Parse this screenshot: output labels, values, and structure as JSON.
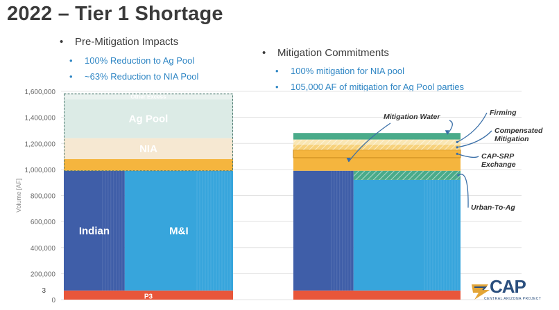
{
  "title": "2022 – Tier 1 Shortage",
  "left_bullets": {
    "heading": "Pre-Mitigation Impacts",
    "items": [
      "100% Reduction to Ag Pool",
      "~63% Reduction to NIA Pool"
    ]
  },
  "right_bullets": {
    "heading": "Mitigation Commitments",
    "items": [
      "100% mitigation for NIA pool",
      "105,000 AF of mitigation for Ag Pool parties"
    ]
  },
  "logo": {
    "text": "CAP",
    "subtext": "CENTRAL ARIZONA PROJECT"
  },
  "colors": {
    "p3": "#e8563a",
    "indian": "#3f5ea8",
    "mi": "#37a5dc",
    "orange": "#f5b53e",
    "nia": "#f6e8d2",
    "ag": "#dcebe6",
    "excess": "#eaf2ef",
    "mitigation_water": "#4aab8a",
    "grid": "#e3e3e3"
  },
  "chart_data": {
    "type": "bar",
    "ylabel": "Volume [AF]",
    "ylim": [
      0,
      1600000
    ],
    "yticks": [
      {
        "v": 0,
        "label": "0"
      },
      {
        "v": 200000,
        "label": "200,000"
      },
      {
        "v": 400000,
        "label": "400,000"
      },
      {
        "v": 600000,
        "label": "600,000"
      },
      {
        "v": 800000,
        "label": "800,000"
      },
      {
        "v": 1000000,
        "label": "1,000,000"
      },
      {
        "v": 1200000,
        "label": "1,200,000"
      },
      {
        "v": 1400000,
        "label": "1,400,000"
      },
      {
        "v": 1600000,
        "label": "1,600,000"
      }
    ],
    "extra_tick": {
      "v": 75000,
      "label": "3"
    },
    "grid": true,
    "bars": [
      {
        "segments": [
          {
            "key": "p3",
            "y0": 0,
            "y1": 70000,
            "label": "P3",
            "color": "#e8563a"
          },
          {
            "key": "indian",
            "y0": 70000,
            "y1": 990000,
            "label": "Indian",
            "color": "#3f5ea8",
            "x0": 0,
            "x1": 0.36
          },
          {
            "key": "mi",
            "y0": 70000,
            "y1": 990000,
            "label": "M&I",
            "color": "#37a5dc",
            "x0": 0.36,
            "x1": 1
          },
          {
            "key": "orange",
            "y0": 990000,
            "y1": 1080000,
            "label": "",
            "color": "#f5b53e"
          },
          {
            "key": "nia",
            "y0": 1080000,
            "y1": 1240000,
            "label": "NIA",
            "color": "#f6e8d2"
          },
          {
            "key": "ag",
            "y0": 1240000,
            "y1": 1540000,
            "label": "Ag Pool",
            "color": "#dcebe6"
          },
          {
            "key": "excess",
            "y0": 1540000,
            "y1": 1580000,
            "label": "Other Excess",
            "color": "#eaf2ef"
          }
        ]
      },
      {
        "segments": [
          {
            "key": "p3",
            "y0": 0,
            "y1": 70000,
            "label": "",
            "color": "#e8563a"
          },
          {
            "key": "indian",
            "y0": 70000,
            "y1": 990000,
            "label": "",
            "color": "#3f5ea8",
            "x0": 0,
            "x1": 0.36
          },
          {
            "key": "mi",
            "y0": 70000,
            "y1": 920000,
            "label": "",
            "color": "#37a5dc",
            "x0": 0.36,
            "x1": 1
          },
          {
            "key": "urban",
            "y0": 920000,
            "y1": 990000,
            "label": "",
            "color": "#4aab8a",
            "hatch": true,
            "x0": 0.36,
            "x1": 1
          },
          {
            "key": "orange",
            "y0": 990000,
            "y1": 1090000,
            "label": "",
            "color": "#f5b53e"
          },
          {
            "key": "capsrp",
            "y0": 1090000,
            "y1": 1150000,
            "label": "",
            "color": "#f5b53e",
            "outline": true
          },
          {
            "key": "compensated",
            "y0": 1150000,
            "y1": 1190000,
            "label": "",
            "color": "#f7d17a",
            "hatch": true
          },
          {
            "key": "firming",
            "y0": 1190000,
            "y1": 1230000,
            "label": "",
            "color": "#f9e6b3",
            "hatch": true
          },
          {
            "key": "mitigation",
            "y0": 1230000,
            "y1": 1280000,
            "label": "",
            "color": "#4aab8a"
          }
        ]
      }
    ],
    "annotations": [
      {
        "key": "mitigation_water",
        "text": "Mitigation Water"
      },
      {
        "key": "firming",
        "text": "Firming"
      },
      {
        "key": "compensated",
        "text": "Compensated\nMitigation"
      },
      {
        "key": "capsrp",
        "text": "CAP-SRP\nExchange"
      },
      {
        "key": "urban",
        "text": "Urban-To-Ag"
      }
    ]
  }
}
